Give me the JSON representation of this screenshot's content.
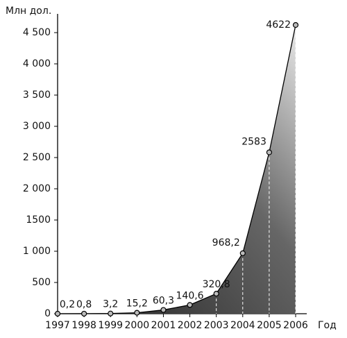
{
  "chart_data": {
    "type": "area",
    "y_label": "Млн дол.",
    "x_label": "Год",
    "x": [
      1997,
      1998,
      1999,
      2000,
      2001,
      2002,
      2003,
      2004,
      2005,
      2006
    ],
    "values": [
      0.2,
      0.8,
      3.2,
      15.2,
      60.3,
      140.6,
      320.8,
      968.2,
      2583,
      4622
    ],
    "value_labels": [
      "0,2",
      "0,8",
      "3,2",
      "15,2",
      "60,3",
      "140,6",
      "320,8",
      "968,2",
      "2583",
      "4622"
    ],
    "xlim": [
      1997,
      2006
    ],
    "xticks": [
      1997,
      1998,
      1999,
      2000,
      2001,
      2002,
      2003,
      2004,
      2005,
      2006
    ],
    "ylim": [
      0,
      4800
    ],
    "yticks": [
      0,
      500,
      {
        "value": 1000,
        "label": "1 000"
      },
      1500,
      {
        "value": 2000,
        "label": "2 000"
      },
      {
        "value": 2500,
        "label": "2 500"
      },
      {
        "value": 3000,
        "label": "3 000"
      },
      {
        "value": 3500,
        "label": "3 500"
      },
      {
        "value": 4000,
        "label": "4 000"
      },
      {
        "value": 4500,
        "label": "4 500"
      }
    ],
    "color": "#3a3a3a"
  }
}
